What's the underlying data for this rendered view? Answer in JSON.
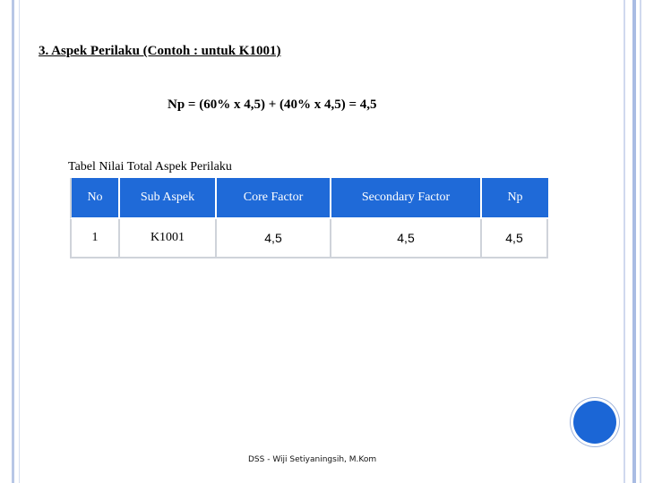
{
  "heading": "3. Aspek Perilaku (Contoh : untuk K1001)",
  "formula": "Np = (60% x 4,5) + (40% x 4,5) = 4,5",
  "table": {
    "caption": "Tabel Nilai Total Aspek Perilaku",
    "headers": [
      "No",
      "Sub Aspek",
      "Core Factor",
      "Secondary Factor",
      "Np"
    ],
    "rows": [
      [
        "1",
        "K1001",
        "4,5",
        "4,5",
        "4,5"
      ]
    ],
    "header_color": "#1f6ad8"
  },
  "footer": "DSS - Wiji Setiyaningsih, M.Kom",
  "accent_color": "#1b66d6"
}
